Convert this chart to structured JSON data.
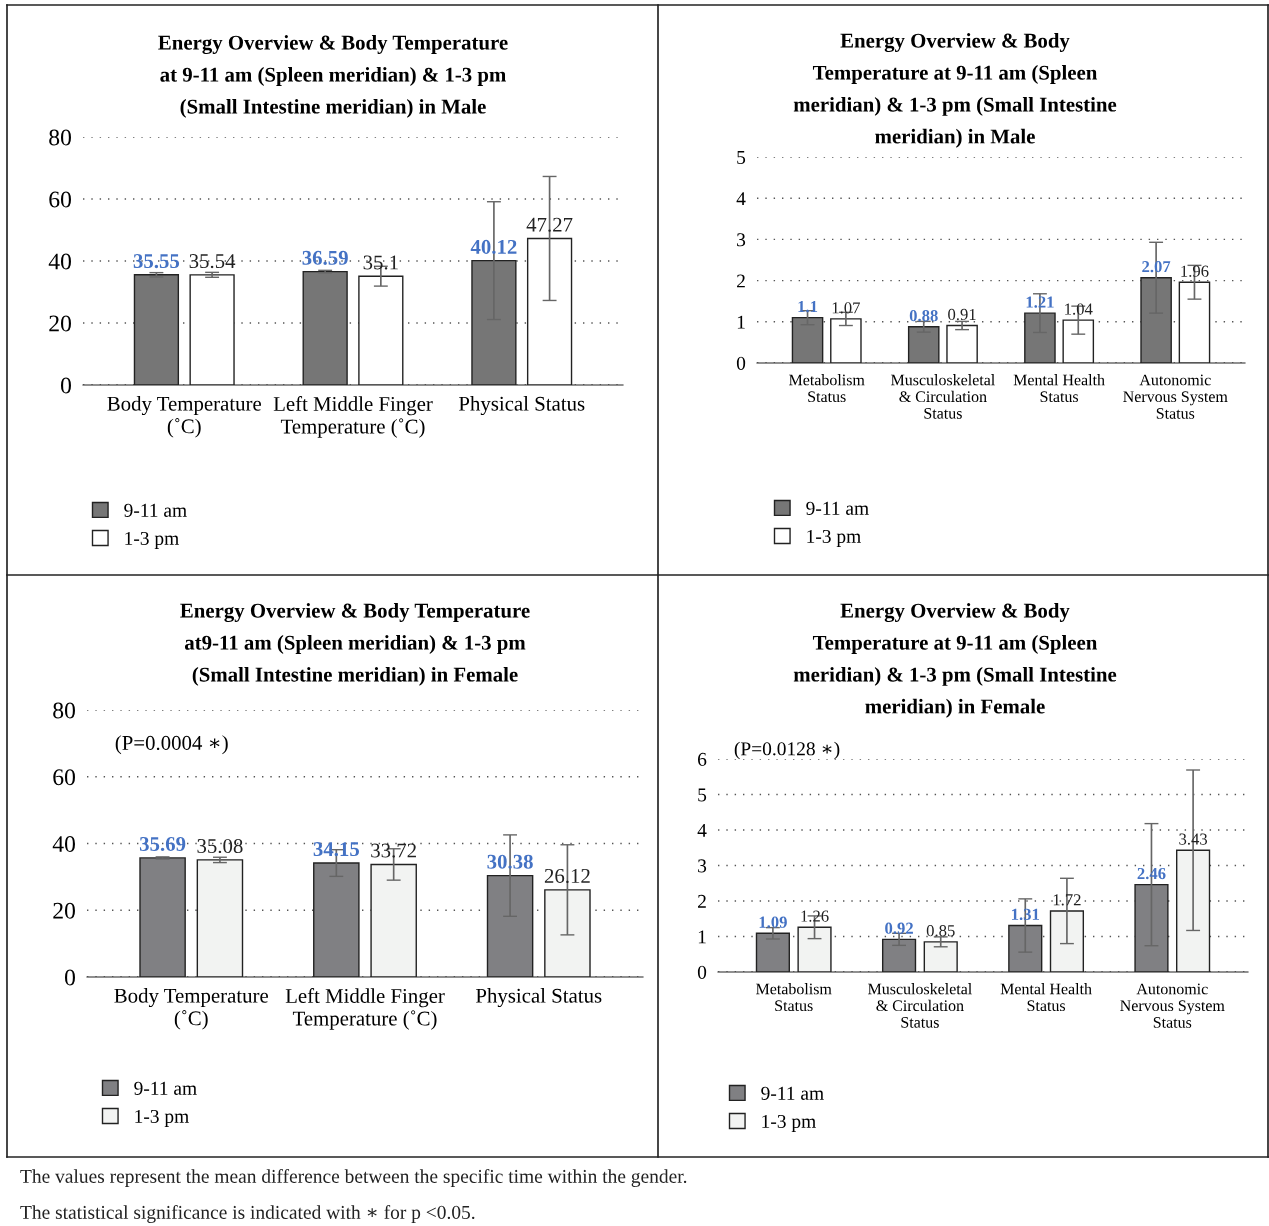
{
  "chart_data": [
    {
      "type": "bar",
      "title": "Energy Overview & Body Temperature\nat 9-11 am (Spleen meridian) & 1-3 pm\n(Small Intestine meridian) in Male",
      "categories": [
        "Body Temperature\n(˚C)",
        "Left Middle Finger\nTemperature (˚C)",
        "Physical Status"
      ],
      "series": [
        {
          "name": "9-11 am",
          "color": "#767676",
          "values": [
            35.55,
            36.59,
            40.12
          ],
          "errors": [
            0.7,
            0.4,
            19
          ]
        },
        {
          "name": "1-3 pm",
          "color": "#ffffff",
          "values": [
            35.54,
            35.1,
            47.27
          ],
          "errors": [
            0.8,
            3.2,
            20
          ]
        }
      ],
      "ylim": [
        0,
        80
      ],
      "yticks": [
        0,
        20,
        40,
        60,
        80
      ],
      "grid": "y",
      "legend": "bottom left",
      "data_labels": true
    },
    {
      "type": "bar",
      "title": "Energy Overview & Body\nTemperature at 9-11 am (Spleen\nmeridian) & 1-3 pm (Small Intestine\nmeridian) in Male",
      "categories": [
        "Metabolism\nStatus",
        "Musculoskeletal\n& Circulation\nStatus",
        "Mental Health\nStatus",
        "Autonomic\nNervous System\nStatus"
      ],
      "series": [
        {
          "name": "9-11 am",
          "color": "#767676",
          "values": [
            1.1,
            0.88,
            1.21,
            2.07
          ],
          "errors": [
            0.17,
            0.13,
            0.47,
            0.86
          ]
        },
        {
          "name": "1-3 pm",
          "color": "#ffffff",
          "values": [
            1.07,
            0.91,
            1.04,
            1.96
          ],
          "errors": [
            0.16,
            0.1,
            0.34,
            0.41
          ]
        }
      ],
      "ylim": [
        0,
        5
      ],
      "yticks": [
        0,
        1,
        2,
        3,
        4,
        5
      ],
      "grid": "y",
      "legend": "bottom left",
      "data_labels": true
    },
    {
      "type": "bar",
      "title": "Energy Overview & Body Temperature\nat9-11 am (Spleen meridian) & 1-3 pm\n(Small Intestine meridian) in Female",
      "categories": [
        "Body Temperature\n(˚C)",
        "Left Middle Finger\nTemperature (˚C)",
        "Physical Status"
      ],
      "series": [
        {
          "name": "9-11 am",
          "color": "#808083",
          "values": [
            35.69,
            34.15,
            30.38
          ],
          "errors": [
            0.3,
            4,
            12.2
          ]
        },
        {
          "name": "1-3 pm",
          "color": "#f2f3f2",
          "values": [
            35.08,
            33.72,
            26.12
          ],
          "errors": [
            0.8,
            4.7,
            13.5
          ]
        }
      ],
      "ylim": [
        0,
        80
      ],
      "yticks": [
        0,
        20,
        40,
        60,
        80
      ],
      "grid": "y",
      "legend": "bottom left",
      "data_labels": true,
      "annotations": [
        "(P=0.0004 ∗)"
      ]
    },
    {
      "type": "bar",
      "title": "Energy Overview & Body\nTemperature at 9-11 am (Spleen\nmeridian) & 1-3 pm (Small Intestine\nmeridian) in Female",
      "categories": [
        "Metabolism\nStatus",
        "Musculoskeletal\n& Circulation\nStatus",
        "Mental Health\nStatus",
        "Autonomic\nNervous System\nStatus"
      ],
      "series": [
        {
          "name": "9-11 am",
          "color": "#808083",
          "values": [
            1.09,
            0.92,
            1.31,
            2.46
          ],
          "errors": [
            0.16,
            0.17,
            0.75,
            1.72
          ]
        },
        {
          "name": "1-3 pm",
          "color": "#f2f3f2",
          "values": [
            1.26,
            0.85,
            1.72,
            3.43
          ],
          "errors": [
            0.32,
            0.14,
            0.92,
            2.26
          ]
        }
      ],
      "ylim": [
        0,
        6
      ],
      "yticks": [
        0,
        1,
        2,
        3,
        4,
        5,
        6
      ],
      "grid": "y",
      "legend": "bottom left",
      "data_labels": true,
      "annotations": [
        "(P=0.0128 ∗)"
      ]
    },
    {
      "type": "other",
      "annotations": [
        "The values represent the mean difference between the specific time within the gender.",
        "The statistical significance is indicated with ∗ for p <0.05."
      ]
    }
  ]
}
